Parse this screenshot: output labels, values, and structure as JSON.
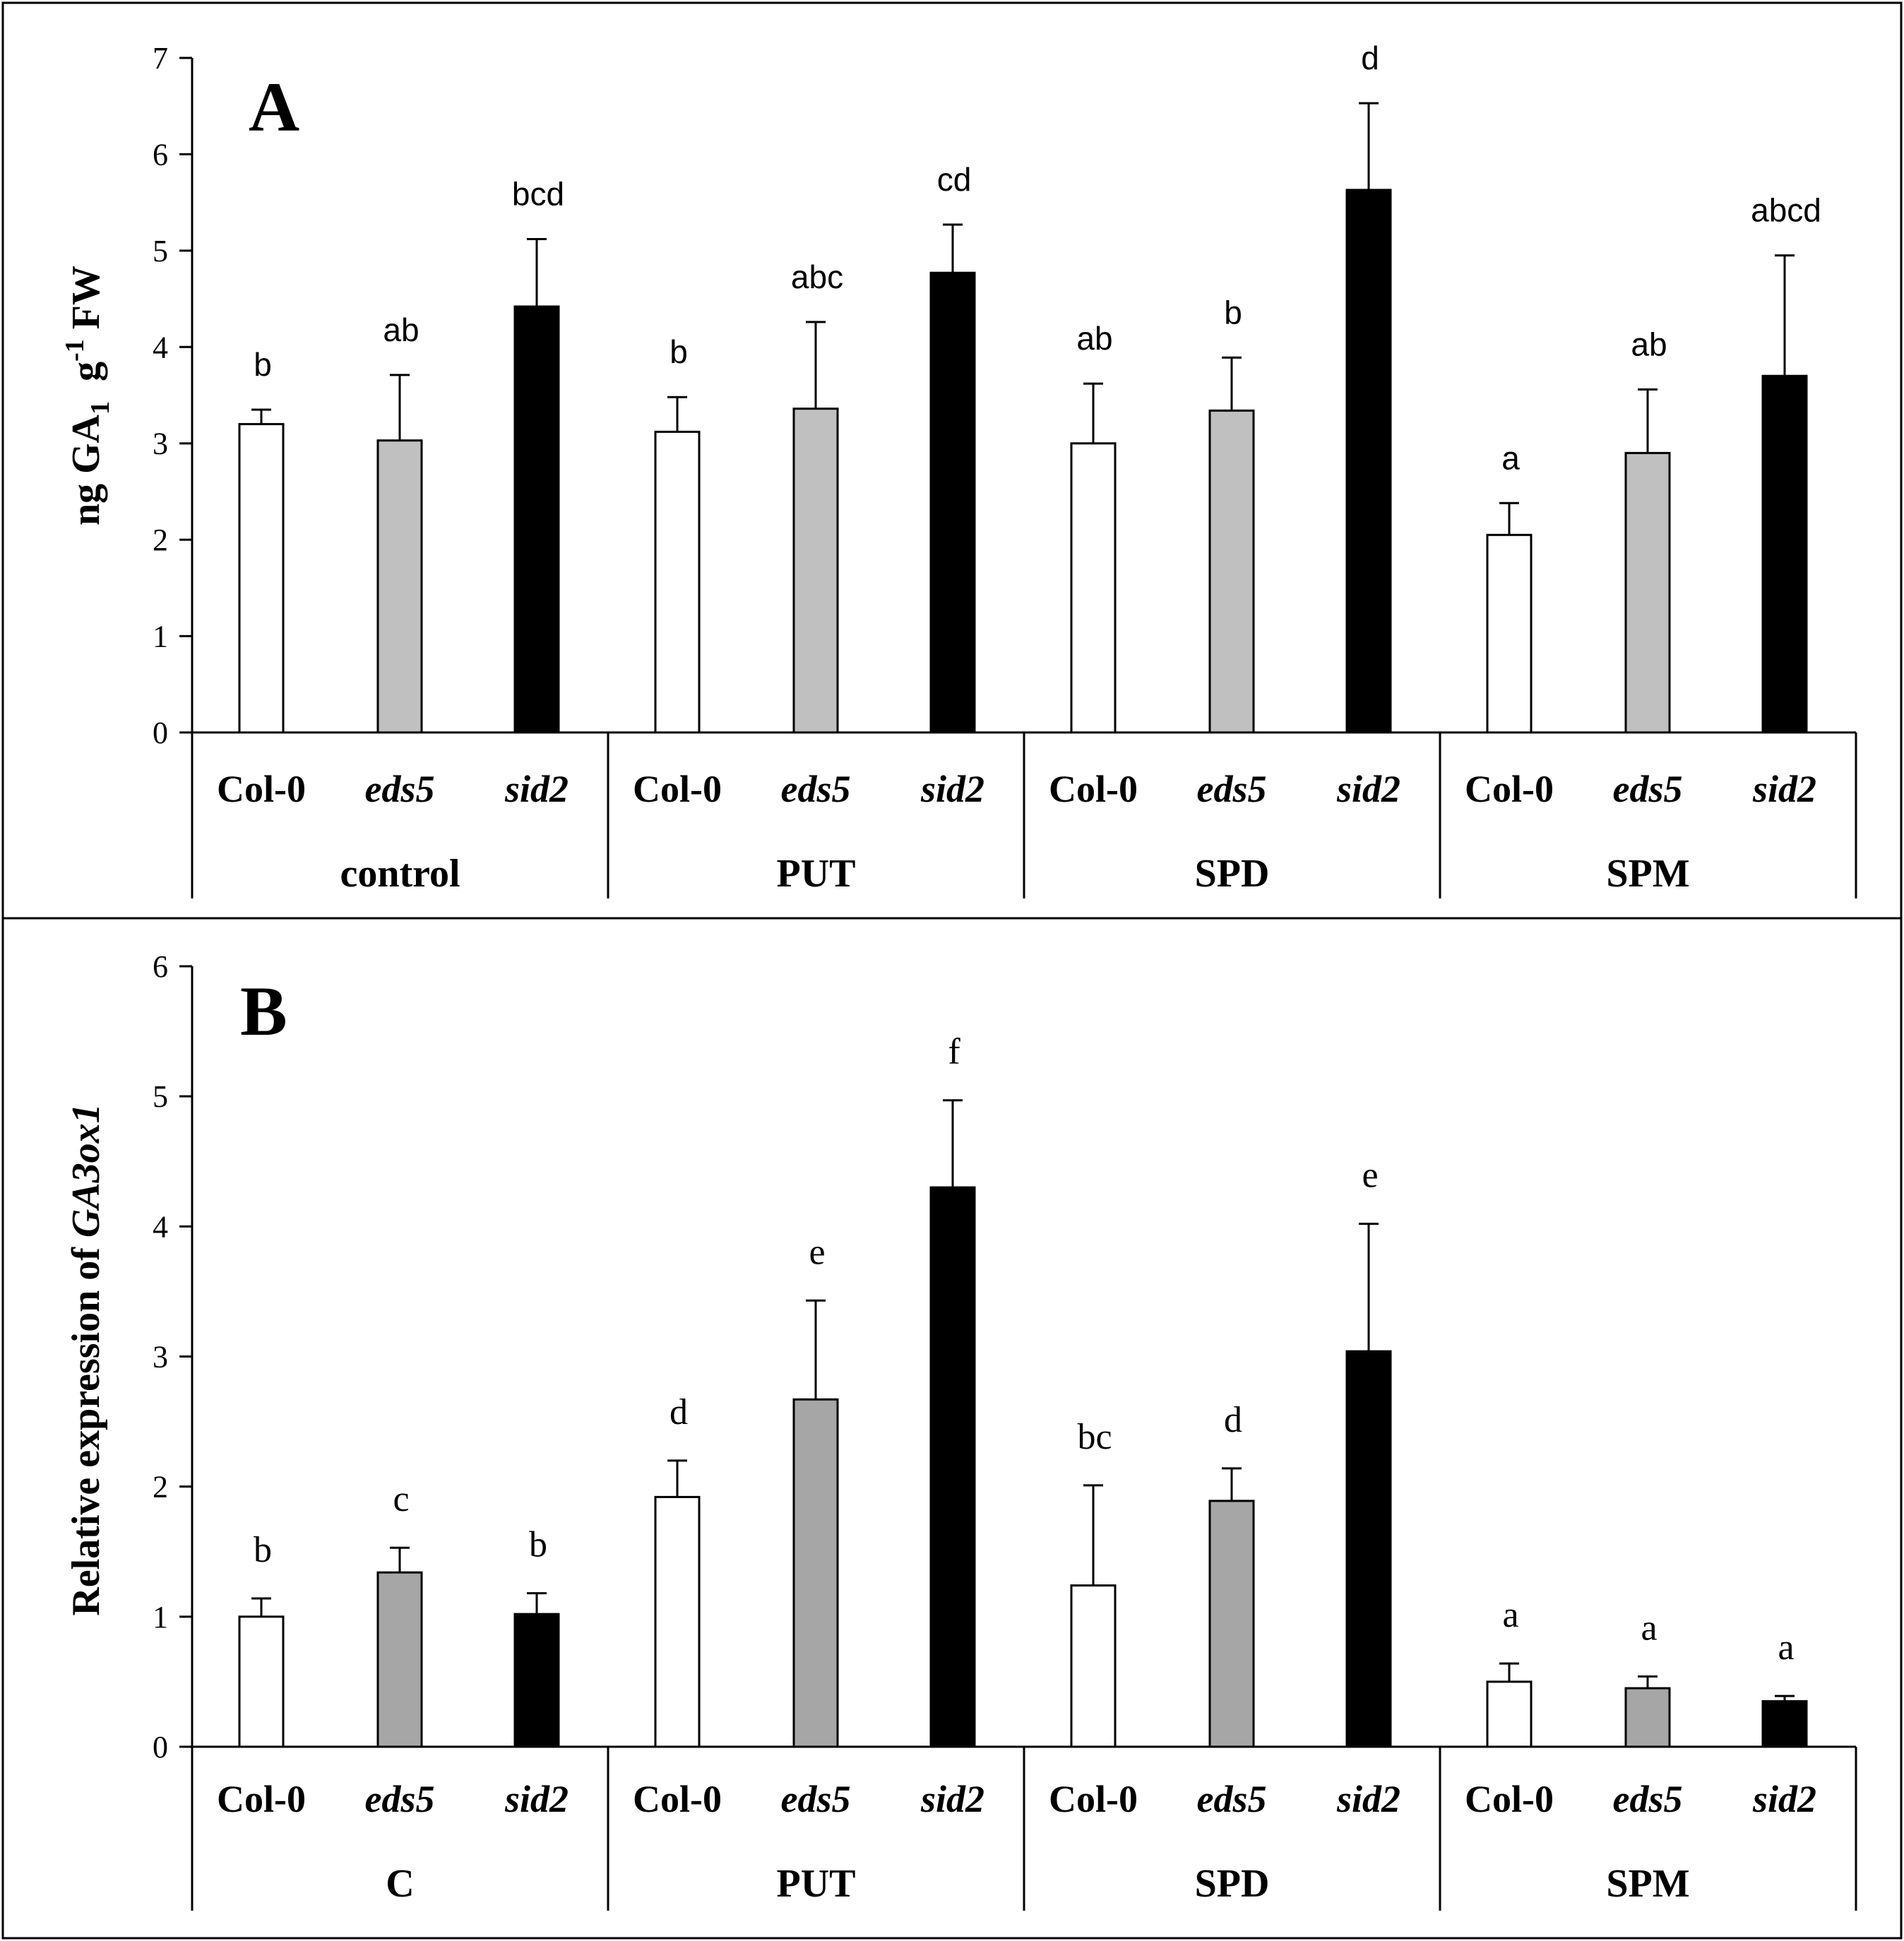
{
  "chart_data": [
    {
      "type": "bar",
      "panel": "A",
      "ylabel_parts": {
        "main": "ng GA",
        "sub": "1",
        "mid": "g",
        "sup": "-1",
        "end": "FW"
      },
      "ylim": [
        0,
        7
      ],
      "yticks": [
        "0",
        "1",
        "2",
        "3",
        "4",
        "5",
        "6",
        "7"
      ],
      "genotypes": [
        {
          "label": "Col-0",
          "italic": false,
          "color": "#ffffff"
        },
        {
          "label": "eds5",
          "italic": true,
          "color": "#c0c0c0"
        },
        {
          "label": "sid2",
          "italic": true,
          "color": "#000000"
        }
      ],
      "groups": [
        {
          "label": "control",
          "values": [
            3.2,
            3.03,
            4.42
          ],
          "errors": [
            0.15,
            0.68,
            0.7
          ],
          "letters": [
            "b",
            "ab",
            "bcd"
          ]
        },
        {
          "label": "PUT",
          "values": [
            3.12,
            3.36,
            4.77
          ],
          "errors": [
            0.36,
            0.9,
            0.5
          ],
          "letters": [
            "b",
            "abc",
            "cd"
          ]
        },
        {
          "label": "SPD",
          "values": [
            3.0,
            3.34,
            5.63
          ],
          "errors": [
            0.62,
            0.55,
            0.9
          ],
          "letters": [
            "ab",
            "b",
            "d"
          ]
        },
        {
          "label": "SPM",
          "values": [
            2.05,
            2.9,
            3.7
          ],
          "errors": [
            0.33,
            0.66,
            1.25
          ],
          "letters": [
            "a",
            "ab",
            "abcd"
          ]
        }
      ]
    },
    {
      "type": "bar",
      "panel": "B",
      "ylabel_parts": {
        "main": "Relative expression of ",
        "italic": "GA3ox1"
      },
      "ylim": [
        0,
        6
      ],
      "yticks": [
        "0",
        "1",
        "2",
        "3",
        "4",
        "5",
        "6"
      ],
      "genotypes": [
        {
          "label": "Col-0",
          "italic": false,
          "color": "#ffffff"
        },
        {
          "label": "eds5",
          "italic": true,
          "color": "#a6a6a6"
        },
        {
          "label": "sid2",
          "italic": true,
          "color": "#000000"
        }
      ],
      "groups": [
        {
          "label": "C",
          "values": [
            1.0,
            1.34,
            1.02
          ],
          "errors": [
            0.14,
            0.19,
            0.16
          ],
          "letters": [
            "b",
            "c",
            "b"
          ]
        },
        {
          "label": "PUT",
          "values": [
            1.92,
            2.67,
            4.3
          ],
          "errors": [
            0.28,
            0.76,
            0.67
          ],
          "letters": [
            "d",
            "e",
            "f"
          ]
        },
        {
          "label": "SPD",
          "values": [
            1.24,
            1.89,
            3.04
          ],
          "errors": [
            0.77,
            0.25,
            0.98
          ],
          "letters": [
            "bc",
            "d",
            "e"
          ]
        },
        {
          "label": "SPM",
          "values": [
            0.5,
            0.45,
            0.35
          ],
          "errors": [
            0.14,
            0.09,
            0.04
          ],
          "letters": [
            "a",
            "a",
            "a"
          ]
        }
      ]
    }
  ]
}
